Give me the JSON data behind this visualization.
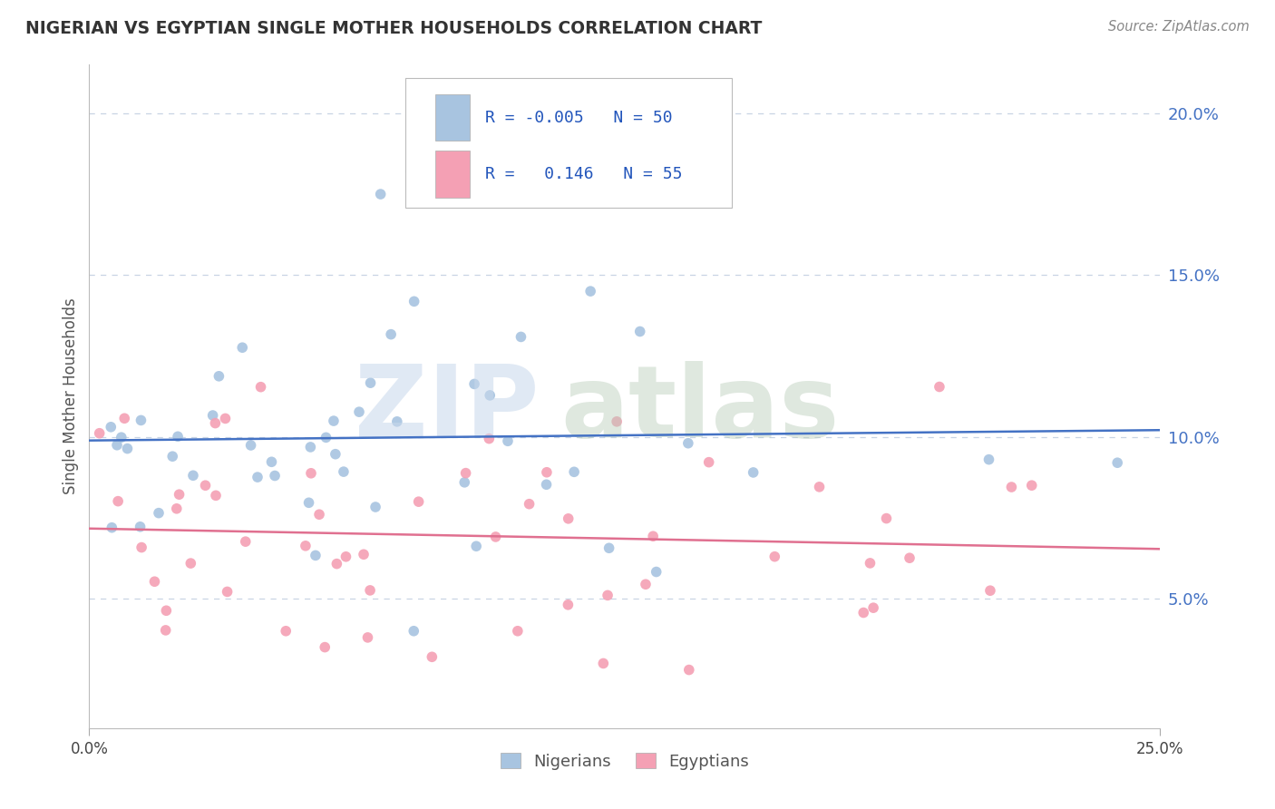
{
  "title": "NIGERIAN VS EGYPTIAN SINGLE MOTHER HOUSEHOLDS CORRELATION CHART",
  "source_text": "Source: ZipAtlas.com",
  "ylabel": "Single Mother Households",
  "color_nigerian": "#a8c4e0",
  "color_egyptian": "#f4a0b4",
  "color_line_nigerian": "#4472c4",
  "color_line_egyptian": "#e07090",
  "color_ytick": "#4472c4",
  "legend_label_nigerians": "Nigerians",
  "legend_label_egyptians": "Egyptians",
  "nigerian_R": -0.005,
  "nigerian_N": 50,
  "egyptian_R": 0.146,
  "egyptian_N": 55,
  "xlim": [
    0.0,
    0.25
  ],
  "ylim": [
    0.01,
    0.215
  ],
  "ytick_vals": [
    0.05,
    0.1,
    0.15,
    0.2
  ],
  "ytick_labels": [
    "5.0%",
    "10.0%",
    "15.0%",
    "20.0%"
  ],
  "xtick_vals": [
    0.0,
    0.25
  ],
  "xtick_labels": [
    "0.0%",
    "25.0%"
  ],
  "grid_color": "#c8d4e4",
  "background_color": "#ffffff",
  "watermark_zip_color": "#c8d8ec",
  "watermark_atlas_color": "#b8ccb8"
}
